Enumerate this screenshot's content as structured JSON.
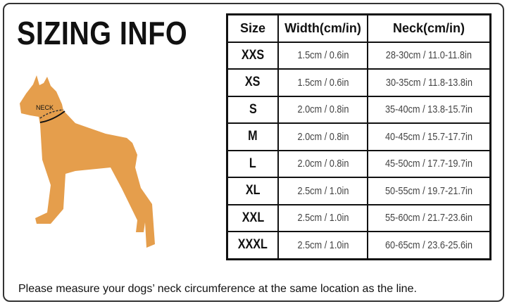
{
  "title": "SIZING INFO",
  "illustration": {
    "label": "NECK",
    "body_color": "#E59E4C"
  },
  "table": {
    "headers": [
      "Size",
      "Width(cm/in)",
      "Neck(cm/in)"
    ],
    "rows": [
      [
        "XXS",
        "1.5cm / 0.6in",
        "28-30cm / 11.0-11.8in"
      ],
      [
        "XS",
        "1.5cm / 0.6in",
        "30-35cm / 11.8-13.8in"
      ],
      [
        "S",
        "2.0cm / 0.8in",
        "35-40cm / 13.8-15.7in"
      ],
      [
        "M",
        "2.0cm / 0.8in",
        "40-45cm / 15.7-17.7in"
      ],
      [
        "L",
        "2.0cm / 0.8in",
        "45-50cm / 17.7-19.7in"
      ],
      [
        "XL",
        "2.5cm / 1.0in",
        "50-55cm / 19.7-21.7in"
      ],
      [
        "XXL",
        "2.5cm / 1.0in",
        "55-60cm / 21.7-23.6in"
      ],
      [
        "XXXL",
        "2.5cm / 1.0in",
        "60-65cm / 23.6-25.6in"
      ]
    ]
  },
  "note": "Please measure your dogs’  neck circumference at the same location as the line."
}
